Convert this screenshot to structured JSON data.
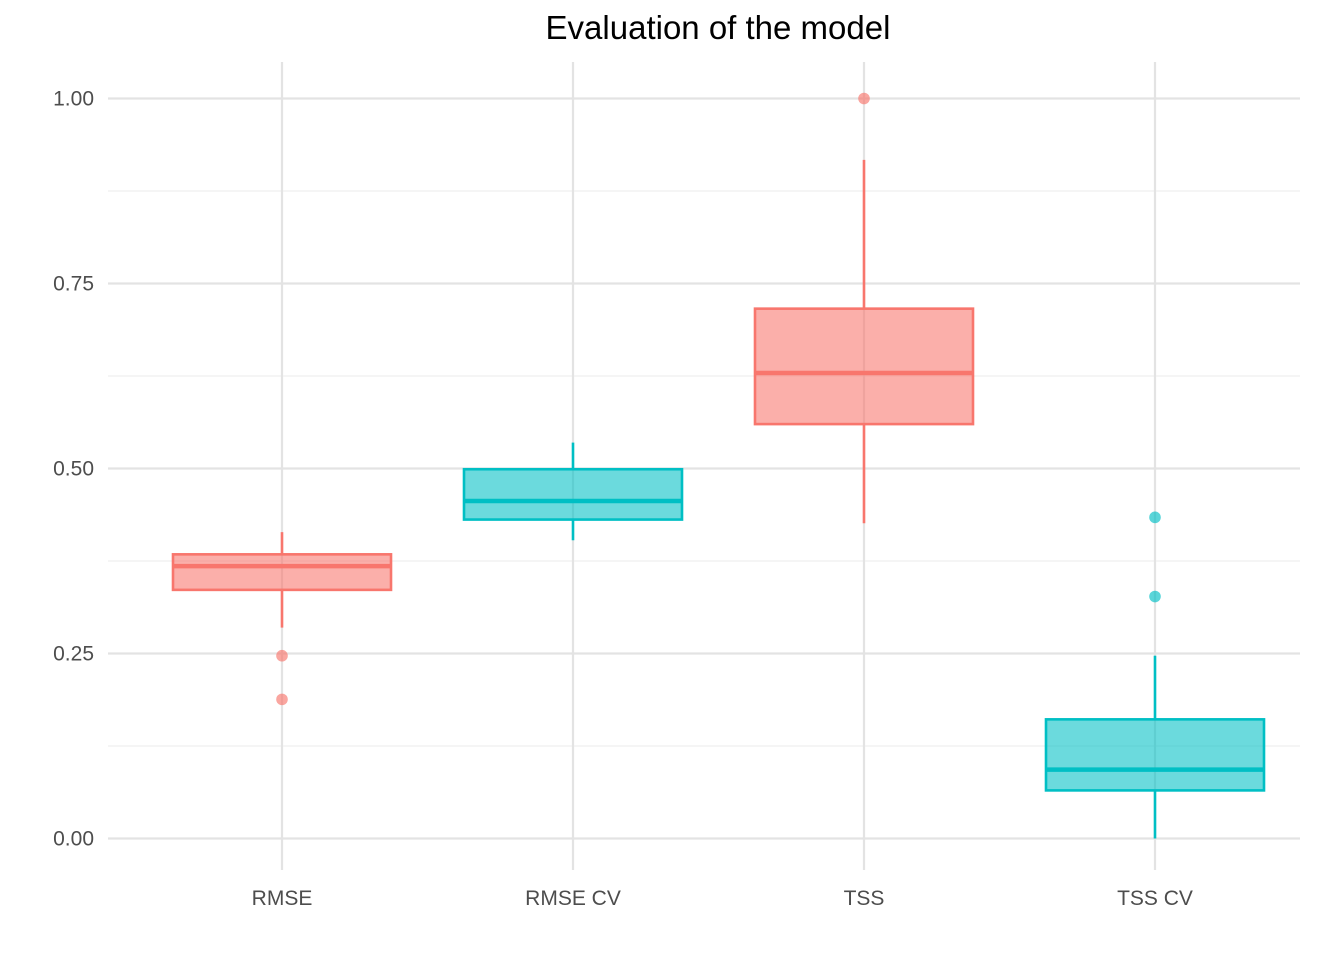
{
  "chart_data": {
    "type": "boxplot",
    "title": "Evaluation of the model",
    "xlabel": "",
    "ylabel": "",
    "ylim": [
      -0.04,
      1.05
    ],
    "yticks": [
      "0.00",
      "0.25",
      "0.50",
      "0.75",
      "1.00"
    ],
    "grid": true,
    "legend": "none",
    "categories": [
      "RMSE",
      "RMSE CV",
      "TSS",
      "TSS CV"
    ],
    "boxes": [
      {
        "category": "RMSE",
        "whisker_low": 0.285,
        "q1": 0.336,
        "median": 0.368,
        "q3": 0.384,
        "whisker_high": 0.414,
        "outliers": [
          0.247,
          0.188
        ],
        "color": "#F8766D"
      },
      {
        "category": "RMSE CV",
        "whisker_low": 0.403,
        "q1": 0.431,
        "median": 0.456,
        "q3": 0.499,
        "whisker_high": 0.535,
        "outliers": [],
        "color": "#00BFC4"
      },
      {
        "category": "TSS",
        "whisker_low": 0.426,
        "q1": 0.56,
        "median": 0.629,
        "q3": 0.716,
        "whisker_high": 0.917,
        "outliers": [
          1.0
        ],
        "color": "#F8766D"
      },
      {
        "category": "TSS CV",
        "whisker_low": 0.0,
        "q1": 0.065,
        "median": 0.093,
        "q3": 0.161,
        "whisker_high": 0.247,
        "outliers": [
          0.434,
          0.327
        ],
        "color": "#00BFC4"
      }
    ]
  }
}
